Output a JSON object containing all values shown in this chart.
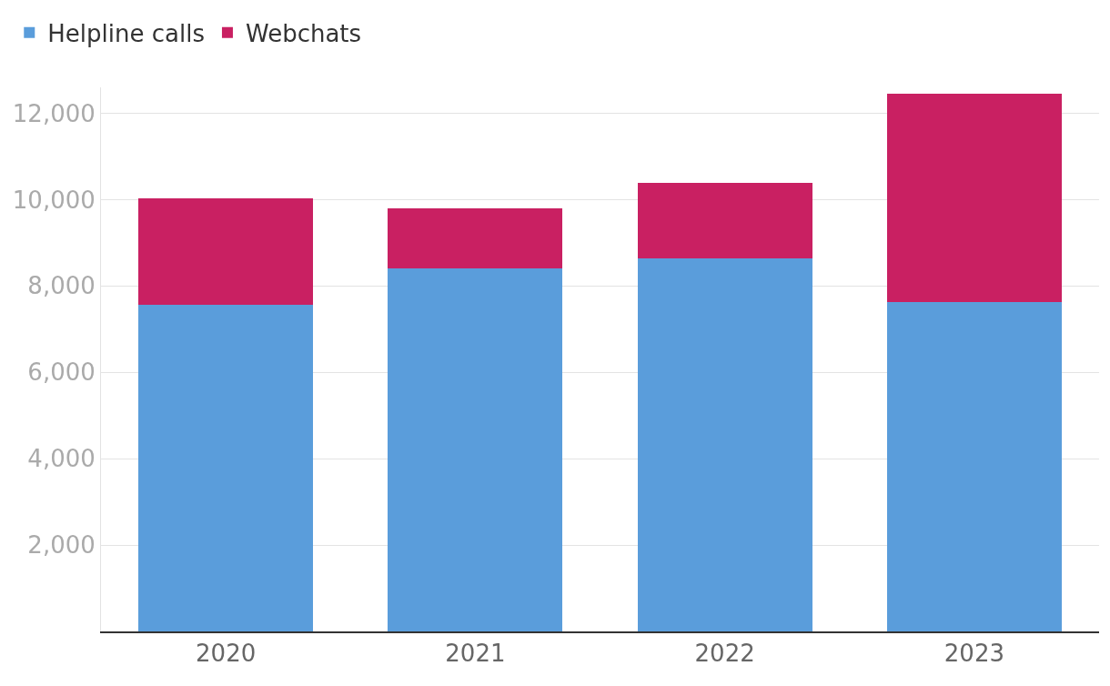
{
  "chart_data": {
    "type": "bar",
    "stacked": true,
    "categories": [
      "2020",
      "2021",
      "2022",
      "2023"
    ],
    "series": [
      {
        "name": "Helpline calls",
        "color": "#5a9ddb",
        "values": [
          7570,
          8400,
          8630,
          7630
        ]
      },
      {
        "name": "Webchats",
        "color": "#c92062",
        "values": [
          2450,
          1400,
          1750,
          4830
        ]
      }
    ],
    "ylim": [
      0,
      12600
    ],
    "yticks": [
      {
        "value": 2000,
        "label": "2,000"
      },
      {
        "value": 4000,
        "label": "4,000"
      },
      {
        "value": 6000,
        "label": "6,000"
      },
      {
        "value": 8000,
        "label": "8,000"
      },
      {
        "value": 10000,
        "label": "10,000"
      },
      {
        "value": 12000,
        "label": "12,000"
      }
    ],
    "grid": "y",
    "legend": "top left"
  }
}
